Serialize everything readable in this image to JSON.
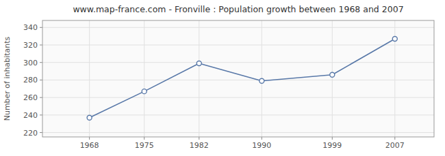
{
  "chart_data": {
    "type": "line",
    "title": "www.map-france.com - Fronville : Population growth between 1968 and 2007",
    "ylabel": "Number of inhabitants",
    "x": [
      1968,
      1975,
      1982,
      1990,
      1999,
      2007
    ],
    "values": [
      237,
      267,
      299,
      279,
      286,
      327
    ],
    "xlim": [
      1962,
      2012
    ],
    "xticks": [
      1968,
      1975,
      1982,
      1990,
      1999,
      2007
    ],
    "ylim": [
      215,
      348
    ],
    "yticks": [
      220,
      240,
      260,
      280,
      300,
      320,
      340
    ],
    "color": "#5878a8",
    "marker": "circle",
    "grid": true
  }
}
